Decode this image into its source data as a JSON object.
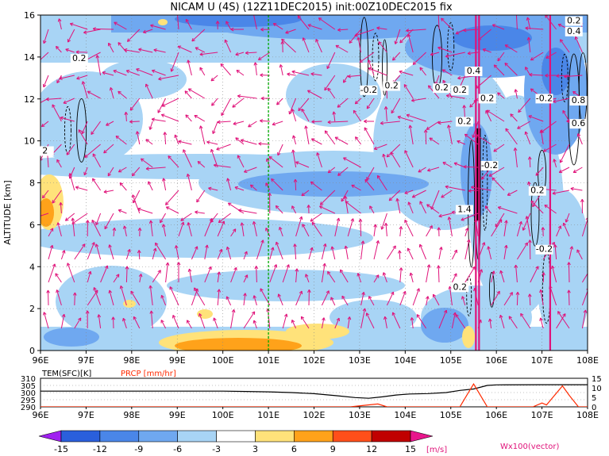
{
  "chart_data": [
    {
      "type": "heatmap",
      "title": "NICAM U (4S) (12Z11DEC2015) init:00Z10DEC2015 fix",
      "xlabel": "",
      "ylabel": "ALTITUDE [km]",
      "x_ticks": [
        "96E",
        "97E",
        "98E",
        "99E",
        "100E",
        "101E",
        "102E",
        "103E",
        "104E",
        "105E",
        "106E",
        "107E",
        "108E"
      ],
      "x_range": [
        96,
        108
      ],
      "y_ticks": [
        "0",
        "2",
        "4",
        "6",
        "8",
        "10",
        "12",
        "14",
        "16"
      ],
      "y_range": [
        0,
        16
      ],
      "grid": true,
      "marker_longitude": 101,
      "contour_labels": [
        {
          "text": "0.2",
          "lon": 96.85,
          "alt": 13.8
        },
        {
          "text": "2",
          "lon": 96.1,
          "alt": 9.4
        },
        {
          "text": "-0.2",
          "lon": 103.2,
          "alt": 12.3
        },
        {
          "text": "0.2",
          "lon": 103.7,
          "alt": 12.5
        },
        {
          "text": "0.2",
          "lon": 104.8,
          "alt": 12.4
        },
        {
          "text": "0.2",
          "lon": 105.2,
          "alt": 12.3
        },
        {
          "text": "0.4",
          "lon": 105.5,
          "alt": 13.2
        },
        {
          "text": "0.2",
          "lon": 105.8,
          "alt": 11.9
        },
        {
          "text": "0.2",
          "lon": 105.3,
          "alt": 10.8
        },
        {
          "text": "-0.2",
          "lon": 105.85,
          "alt": 8.7
        },
        {
          "text": "0.4",
          "lon": 107.7,
          "alt": 15.1
        },
        {
          "text": "0.2",
          "lon": 107.7,
          "alt": 15.6
        },
        {
          "text": "-0.2",
          "lon": 107.05,
          "alt": 11.9
        },
        {
          "text": "0.8",
          "lon": 107.8,
          "alt": 11.8
        },
        {
          "text": "0.6",
          "lon": 107.8,
          "alt": 10.7
        },
        {
          "text": "0.2",
          "lon": 106.9,
          "alt": 7.5
        },
        {
          "text": "1.4",
          "lon": 105.3,
          "alt": 6.6
        },
        {
          "text": "-0.2",
          "lon": 107.05,
          "alt": 4.7
        },
        {
          "text": "0.2",
          "lon": 105.2,
          "alt": 2.9
        }
      ],
      "color_scale": {
        "units": "[m/s]",
        "labels": [
          "-15",
          "-12",
          "-9",
          "-6",
          "-3",
          "3",
          "6",
          "9",
          "12",
          "15"
        ],
        "colors": [
          "#a020f0",
          "#2a5fdc",
          "#4a86e8",
          "#6fa8f0",
          "#a8d4f5",
          "#ffffff",
          "#ffe27a",
          "#ffa21a",
          "#ff4f1a",
          "#c00000",
          "#e8168c"
        ]
      },
      "vector_label": "Wx100(vector)",
      "vector_color": "#e0137a"
    },
    {
      "type": "line",
      "x_ticks": [
        "96E",
        "97E",
        "98E",
        "99E",
        "100E",
        "101E",
        "102E",
        "103E",
        "104E",
        "105E",
        "106E",
        "107E",
        "108E"
      ],
      "x_range": [
        96,
        108
      ],
      "series": [
        {
          "name": "TEM(SFC)[K]",
          "color": "#000000",
          "y_ticks": [
            "290",
            "295",
            "300",
            "305",
            "310"
          ],
          "y_range": [
            290,
            310
          ],
          "x": [
            96,
            97,
            98,
            99,
            100,
            100.5,
            101,
            101.5,
            102,
            102.5,
            102.9,
            103.2,
            103.5,
            103.8,
            104.1,
            104.5,
            104.9,
            105.2,
            105.5,
            105.8,
            106,
            107,
            108
          ],
          "y": [
            301,
            301,
            301,
            301,
            301,
            300.8,
            300.5,
            300,
            299.2,
            297.8,
            296.5,
            296,
            297,
            298.3,
            299,
            299.3,
            300,
            301.5,
            302.5,
            305,
            305.4,
            305.5,
            305.5
          ]
        },
        {
          "name": "PRCP [mm/hr]",
          "color": "#ff2a00",
          "y_ticks": [
            "0",
            "5",
            "10",
            "15"
          ],
          "y_range": [
            0,
            15
          ],
          "x": [
            96,
            102.8,
            103.1,
            103.4,
            103.6,
            105.2,
            105.35,
            105.5,
            105.65,
            105.8,
            106.8,
            107,
            107.1,
            107.45,
            107.6,
            107.8,
            108
          ],
          "y": [
            0,
            0,
            0.8,
            1.5,
            0,
            0,
            6,
            12,
            6,
            0,
            0,
            2,
            1,
            11,
            6,
            0,
            0
          ]
        }
      ]
    }
  ]
}
